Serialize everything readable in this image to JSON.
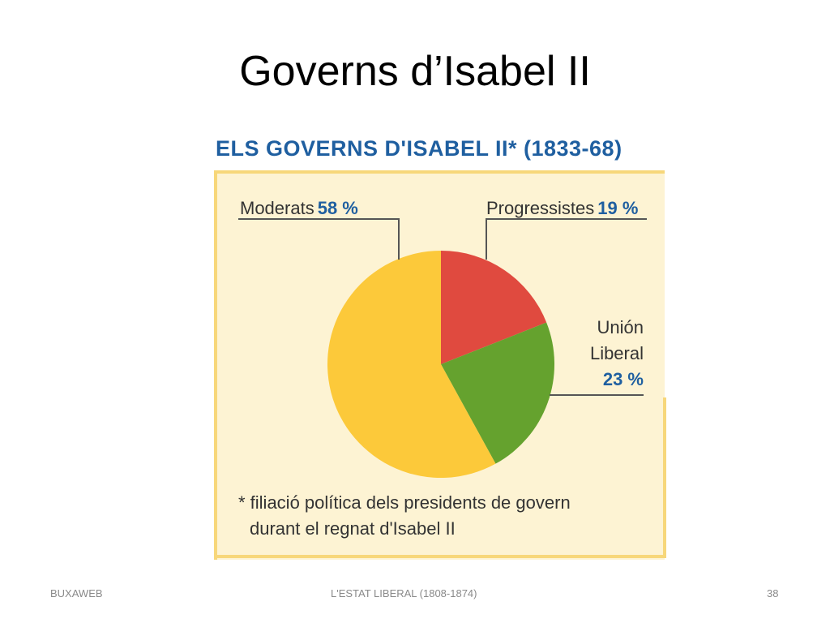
{
  "slide": {
    "title": "Governs d’Isabel II",
    "footer_left": "BUXAWEB",
    "footer_center": "L'ESTAT LIBERAL (1808-1874)",
    "footer_right": "38"
  },
  "chart_data": {
    "type": "pie",
    "title": "ELS GOVERNS D'ISABEL II* (1833-68)",
    "slices": [
      {
        "label": "Progressistes",
        "value": 19,
        "value_label": "19 %",
        "color": "#e04a3f"
      },
      {
        "label": "Unión Liberal",
        "value": 23,
        "value_label": "23 %",
        "color": "#65a22e"
      },
      {
        "label": "Moderats",
        "value": 58,
        "value_label": "58 %",
        "color": "#fcc93a"
      }
    ],
    "label_union_line1": "Unión",
    "label_union_line2": "Liberal",
    "footnote_line1": "* filiació política dels presidents de govern",
    "footnote_line2": "durant el regnat d'Isabel II",
    "colors": {
      "background": "#fdf3d3",
      "border": "#f7d77a",
      "title": "#1f5fa0",
      "leader": "#555555"
    }
  }
}
